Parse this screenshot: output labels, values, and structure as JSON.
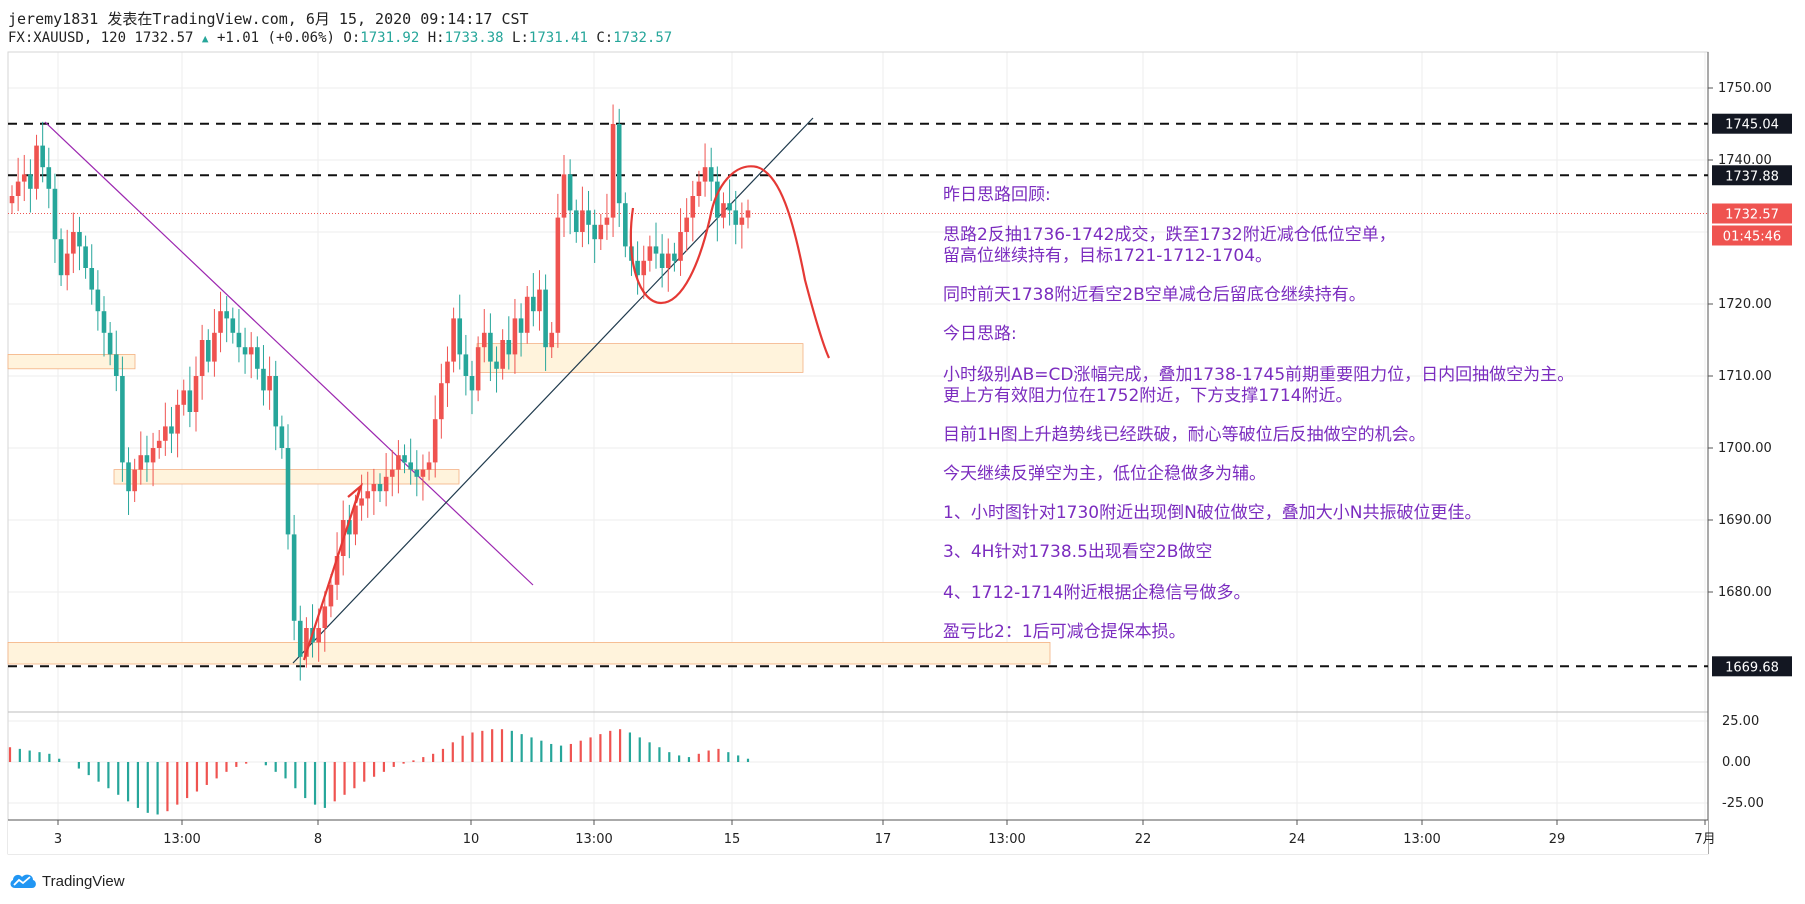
{
  "header": {
    "line1": "jeremy1831 发表在TradingView.com, 6月 15, 2020 09:14:17 CST",
    "symbol": "FX:XAUUSD, 120",
    "last": "1732.57",
    "change": "+1.01 (+0.06%)",
    "o_label": "O:",
    "o": "1731.92",
    "h_label": "H:",
    "h": "1733.38",
    "l_label": "L:",
    "l": "1731.41",
    "c_label": "C:",
    "c": "1732.57"
  },
  "watermark": "TradingView",
  "colors": {
    "up": "#ef5350",
    "down": "#26a69a",
    "purple": "#7b2cbf",
    "zone": "#fff3dc",
    "zone_border": "#f4b183"
  },
  "price_axis": {
    "ticks": [
      "1750.00",
      "1740.00",
      "1720.00",
      "1710.00",
      "1700.00",
      "1690.00",
      "1680.00"
    ],
    "tick_values": [
      1750,
      1740,
      1720,
      1710,
      1700,
      1690,
      1680
    ],
    "levels": [
      {
        "label": "1745.04",
        "value": 1745.04
      },
      {
        "label": "1737.88",
        "value": 1737.88
      },
      {
        "label": "1669.68",
        "value": 1669.68
      }
    ],
    "current": {
      "label": "1732.57",
      "value": 1732.57
    },
    "countdown": "01:45:46"
  },
  "osc_axis": {
    "ticks": [
      "25.00",
      "0.00",
      "-25.00"
    ],
    "tick_values": [
      25,
      0,
      -25
    ]
  },
  "time_axis": {
    "labels": [
      "3",
      "13:00",
      "8",
      "10",
      "13:00",
      "15",
      "17",
      "13:00",
      "22",
      "24",
      "13:00",
      "29",
      "7月"
    ]
  },
  "annotation": {
    "title": "昨日思路回顾:",
    "lines": [
      "思路2反抽1736-1742成交，跌至1732附近减仓低位空单，",
      "留高位继续持有，目标1721-1712-1704。",
      "同时前天1738附近看空2B空单减仓后留底仓继续持有。",
      "今日思路:",
      "小时级别AB=CD涨幅完成，叠加1738-1745前期重要阻力位，日内回抽做空为主。",
      "更上方有效阻力位在1752附近，下方支撑1714附近。",
      "目前1H图上升趋势线已经跌破，耐心等破位后反抽做空的机会。",
      "今天继续反弹空为主，低位企稳做多为辅。",
      "1、小时图针对1730附近出现倒N破位做空，叠加大小N共振破位更佳。",
      "3、4H针对1738.5出现看空2B做空",
      "4、1712-1714附近根据企稳信号做多。",
      "盈亏比2：1后可减仓提保本损。"
    ]
  },
  "chart_data": {
    "type": "candlestick",
    "symbol": "FX:XAUUSD",
    "interval": "120",
    "ylim": [
      1662,
      1753
    ],
    "resistance_levels": [
      1745.04,
      1737.88
    ],
    "support_level": 1669.68,
    "current_price": 1732.57,
    "zones": [
      [
        1711,
        1713
      ],
      [
        1695,
        1697
      ],
      [
        1670,
        1673
      ],
      [
        1710.5,
        1714.5
      ]
    ],
    "oscillator_ylim": [
      -33,
      32
    ],
    "closes": [
      1735,
      1737,
      1738,
      1736,
      1742,
      1739,
      1736,
      1729,
      1724,
      1727,
      1730,
      1728,
      1725,
      1722,
      1719,
      1716,
      1713,
      1710,
      1698,
      1694,
      1697,
      1699,
      1698,
      1700,
      1701,
      1703,
      1702,
      1706,
      1708,
      1705,
      1710,
      1715,
      1712,
      1716,
      1719,
      1718,
      1716,
      1714,
      1713,
      1714,
      1711,
      1708,
      1710,
      1703,
      1700,
      1688,
      1676,
      1671,
      1675,
      1673,
      1675,
      1678,
      1681,
      1685,
      1690,
      1688,
      1692,
      1693,
      1694,
      1695,
      1694,
      1696,
      1697,
      1699,
      1698,
      1697,
      1696,
      1697,
      1698,
      1704,
      1709,
      1712,
      1718,
      1713,
      1710,
      1708,
      1714,
      1716,
      1712,
      1711,
      1715,
      1713,
      1718,
      1716,
      1721,
      1719,
      1722,
      1714,
      1716,
      1732,
      1738,
      1733,
      1730,
      1733,
      1731,
      1729,
      1731,
      1732,
      1745,
      1734,
      1728,
      1726,
      1724,
      1726,
      1728,
      1727,
      1725,
      1727,
      1726,
      1730,
      1732,
      1735,
      1737,
      1739,
      1737,
      1732,
      1734,
      1733,
      1731,
      1732,
      1733
    ],
    "oscillator": [
      9,
      8,
      7,
      6,
      5,
      2,
      0,
      -4,
      -8,
      -12,
      -16,
      -20,
      -24,
      -28,
      -31,
      -32,
      -30,
      -26,
      -22,
      -18,
      -14,
      -10,
      -6,
      -3,
      -1,
      0,
      -2,
      -6,
      -10,
      -16,
      -22,
      -26,
      -28,
      -24,
      -20,
      -16,
      -12,
      -9,
      -6,
      -3,
      -1,
      1,
      3,
      5,
      8,
      12,
      16,
      18,
      19,
      20,
      20,
      19,
      17,
      15,
      13,
      11,
      10,
      11,
      13,
      15,
      17,
      19,
      20,
      18,
      15,
      12,
      9,
      6,
      4,
      3,
      5,
      7,
      8,
      6,
      4,
      2
    ]
  }
}
